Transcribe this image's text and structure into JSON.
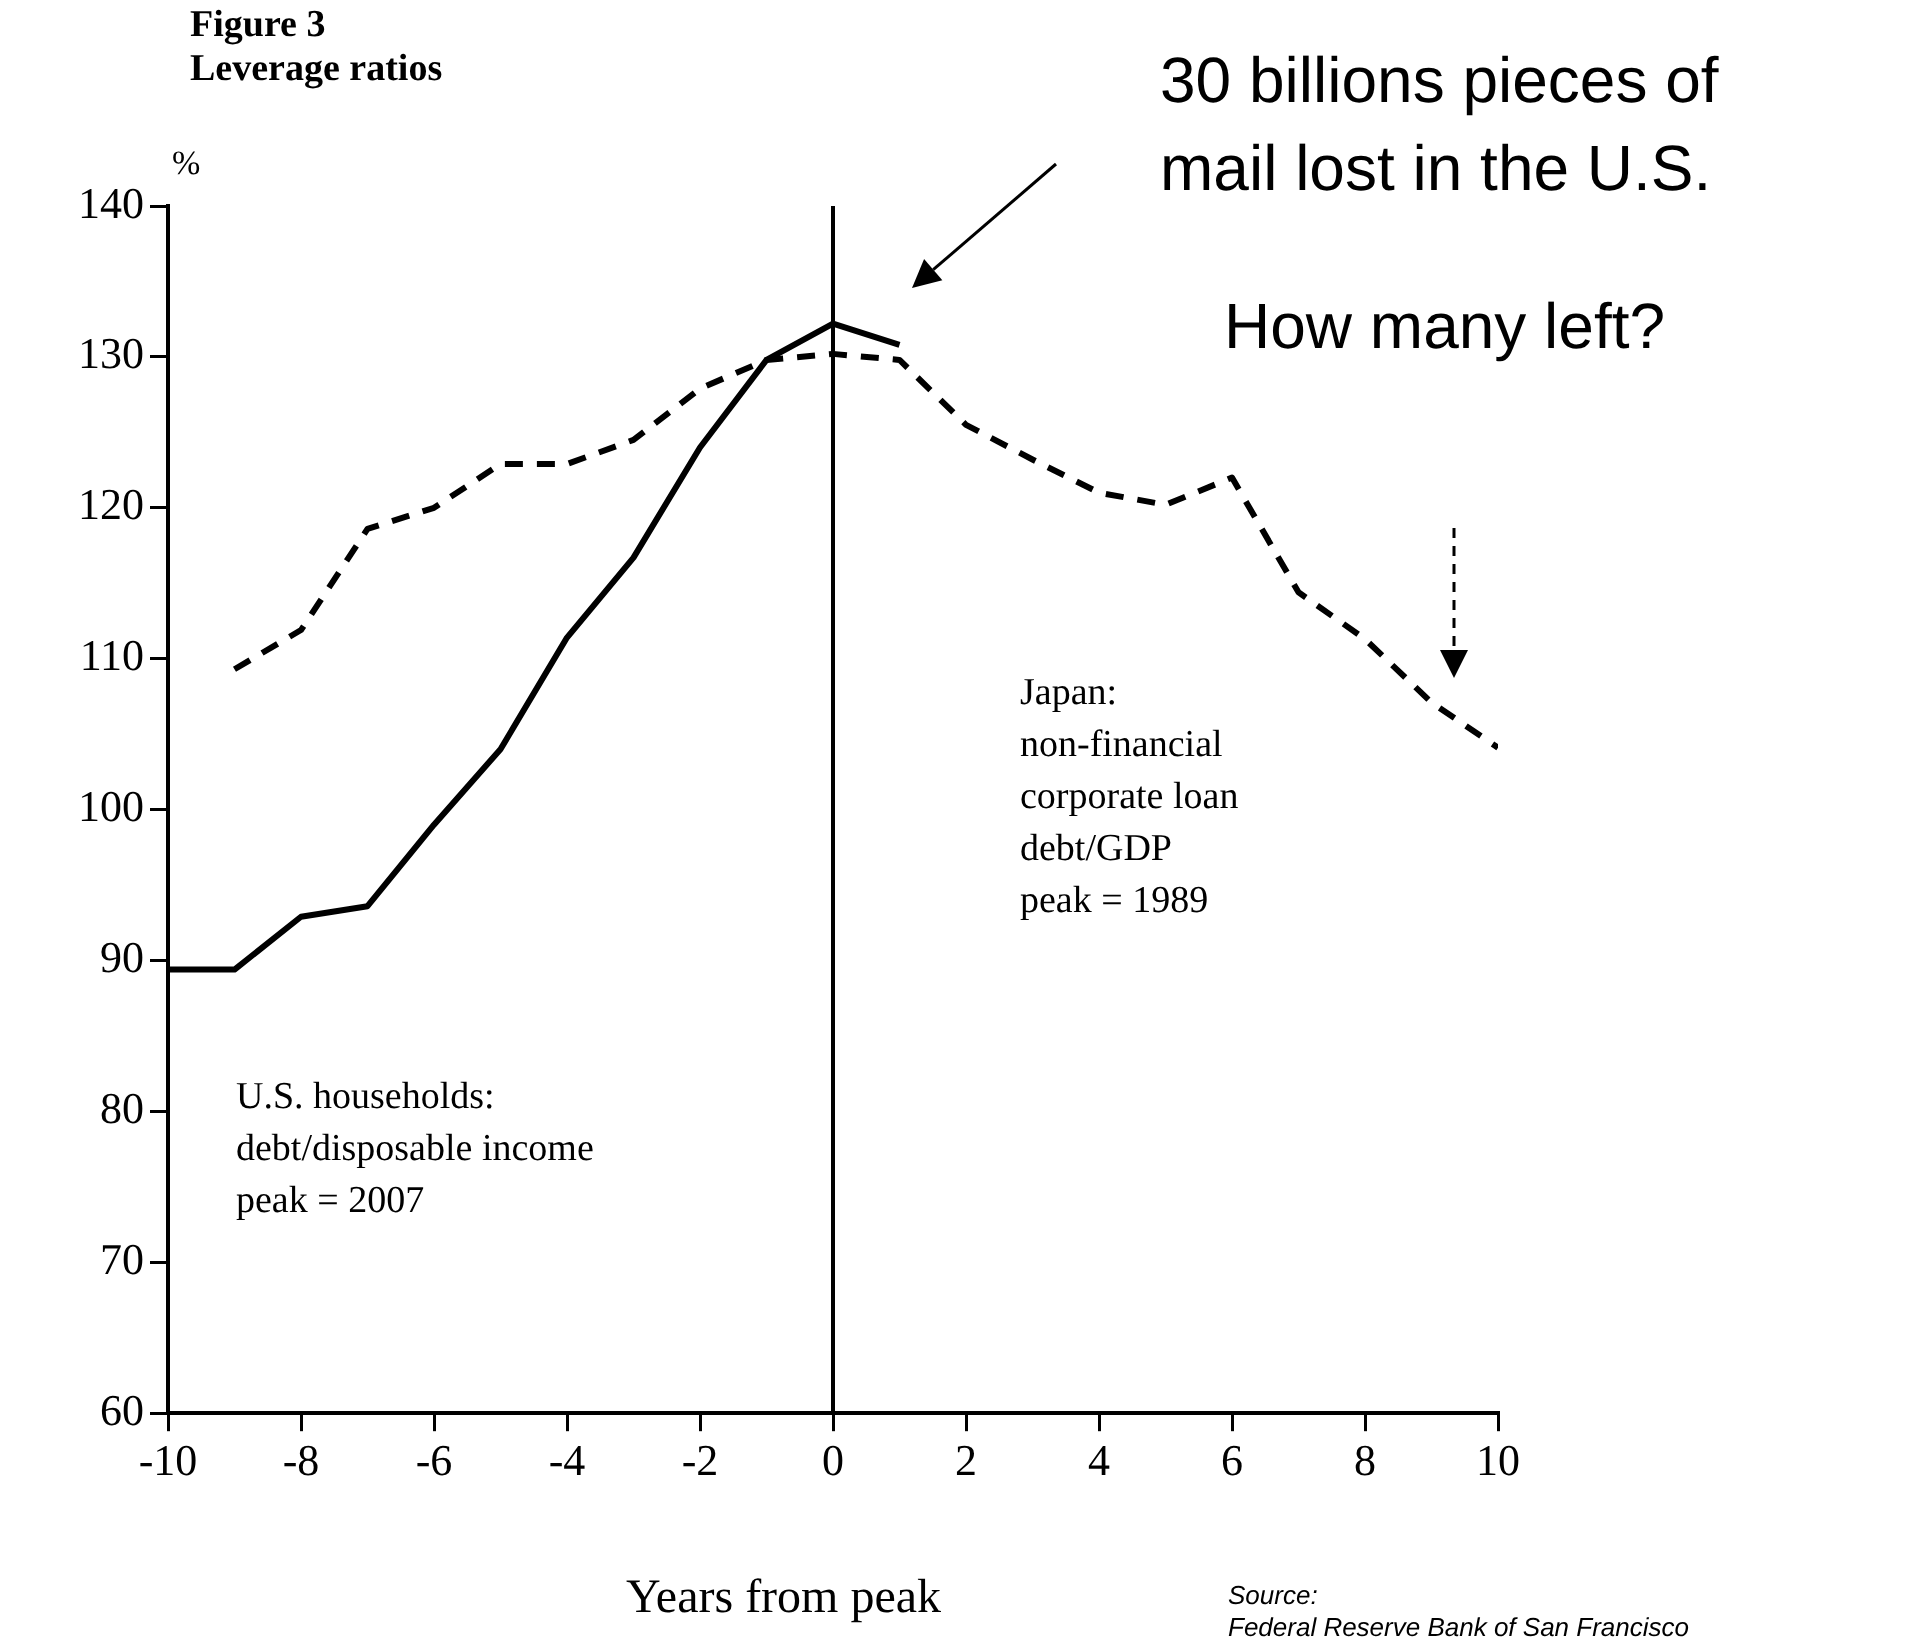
{
  "chart_data": {
    "type": "line",
    "title": "Figure 3",
    "subtitle": "Leverage ratios",
    "ylabel": "%",
    "xlabel": "Years from peak",
    "xlim": [
      -10,
      10
    ],
    "xticks": [
      -10,
      -8,
      -6,
      -4,
      -2,
      0,
      2,
      4,
      6,
      8,
      10
    ],
    "ylim": [
      60,
      140
    ],
    "yticks": [
      60,
      70,
      80,
      90,
      100,
      110,
      120,
      130,
      140
    ],
    "grid": false,
    "legend": false,
    "marker": "none",
    "series": [
      {
        "color": "#000000",
        "line_style": "solid",
        "x": [
          -10,
          -9,
          -8,
          -7,
          -6,
          -5,
          -4,
          -3,
          -2,
          -1,
          0,
          1
        ],
        "values": [
          89.4,
          89.4,
          92.9,
          93.6,
          99.0,
          104.0,
          111.4,
          116.7,
          124.0,
          129.8,
          132.2,
          130.8
        ]
      },
      {
        "color": "#000000",
        "line_style": "dashed",
        "x": [
          -9,
          -8,
          -7,
          -6,
          -5,
          -4,
          -3,
          -2,
          -1,
          0,
          1,
          2,
          3,
          4,
          5,
          6,
          7,
          8,
          9,
          10
        ],
        "values": [
          109.3,
          111.9,
          118.6,
          120.0,
          122.9,
          122.9,
          124.5,
          127.9,
          129.8,
          130.2,
          129.8,
          125.5,
          123.2,
          121.0,
          120.2,
          122.0,
          114.4,
          111.3,
          107.1,
          104.1
        ]
      }
    ],
    "ref_lines": [
      {
        "axis": "x",
        "value": 0,
        "color": "#000000"
      }
    ],
    "annotations": [
      "U.S. households:\ndebt/disposable income\npeak = 2007",
      "Japan:\nnon-financial\ncorporate loan\ndebt/GDP\npeak = 1989",
      "30 billions pieces of\nmail lost in the U.S.",
      "How many left?",
      "Source:\nFederal Reserve Bank of San Francisco"
    ]
  }
}
